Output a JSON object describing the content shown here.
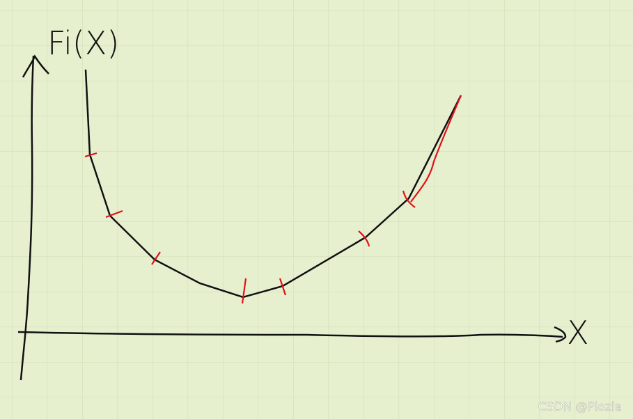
{
  "y_axis_label": "Fi(X)",
  "x_axis_label": "X",
  "watermark": "CSDN @Plozia"
}
